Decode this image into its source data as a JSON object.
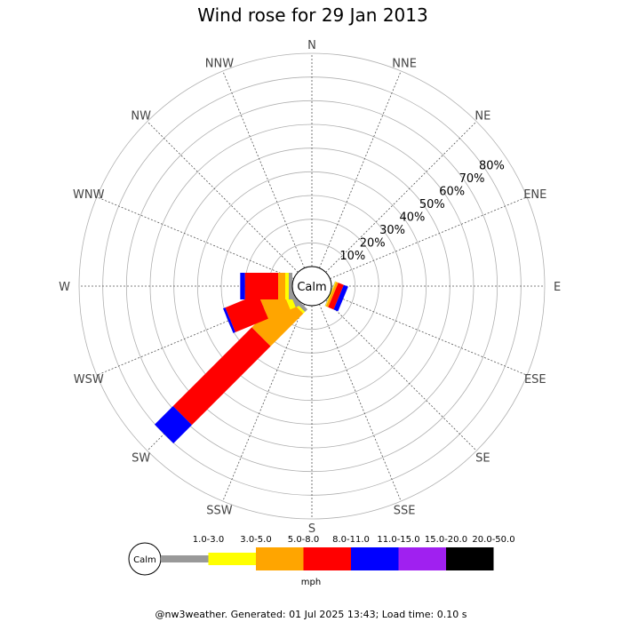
{
  "chart_data": {
    "type": "wind_rose",
    "title": "Wind rose for 29 Jan 2013",
    "directions": [
      "N",
      "NNE",
      "NE",
      "ENE",
      "E",
      "ESE",
      "SE",
      "SSE",
      "S",
      "SSW",
      "SW",
      "WSW",
      "W",
      "WNW",
      "NW",
      "NNW"
    ],
    "rings_percent": [
      10,
      20,
      30,
      40,
      50,
      60,
      70,
      80
    ],
    "ring_labels": [
      "10%",
      "20%",
      "30%",
      "40%",
      "50%",
      "60%",
      "70%",
      "80%"
    ],
    "center_label": "Calm",
    "grid": true,
    "speed_bins": [
      {
        "label": "1.0-3.0",
        "color": "#999999"
      },
      {
        "label": "3.0-5.0",
        "color": "#ffff00"
      },
      {
        "label": "5.0-8.0",
        "color": "#ffa500"
      },
      {
        "label": "8.0-11.0",
        "color": "#ff0000"
      },
      {
        "label": "11.0-15.0",
        "color": "#0000ff"
      },
      {
        "label": "15.0-20.0",
        "color": "#a020f0"
      },
      {
        "label": "20.0-50.0",
        "color": "#000000"
      }
    ],
    "unit_label": "mph",
    "series": [
      {
        "direction": "SW",
        "angle": 225,
        "cumulative_percent": [
          1.5,
          2.5,
          22,
          69,
          80
        ]
      },
      {
        "direction": "WSW",
        "angle": 247.5,
        "cumulative_percent": [
          1.5,
          4,
          14,
          29,
          30
        ]
      },
      {
        "direction": "ESE",
        "angle": 112.5,
        "cumulative_percent": [
          0.2,
          0.5,
          1.5,
          4,
          6
        ]
      },
      {
        "direction": "W",
        "angle": 270,
        "cumulative_percent": [
          1.5,
          3,
          6,
          20,
          22
        ]
      }
    ]
  },
  "footer": {
    "text": "@nw3weather. Generated: 01 Jul 2025 13:43; Load time: 0.10 s"
  },
  "legend": {
    "calm_label": "Calm"
  }
}
